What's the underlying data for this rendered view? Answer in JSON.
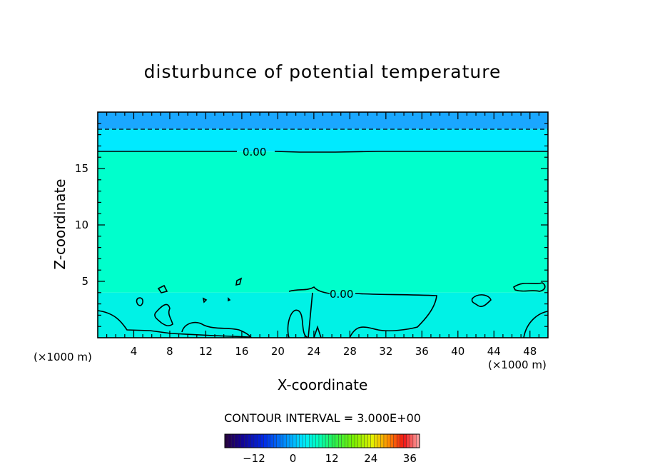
{
  "chart_data": {
    "type": "heatmap",
    "title": "disturbunce of potential temperature",
    "xlabel": "X-coordinate",
    "ylabel": "Z-coordinate",
    "x_unit_label": "(×1000 m)",
    "xlim": [
      0,
      50
    ],
    "ylim": [
      0,
      20
    ],
    "x_ticks": [
      4,
      8,
      12,
      16,
      20,
      24,
      28,
      32,
      36,
      40,
      44,
      48
    ],
    "y_ticks": [
      5,
      10,
      15
    ],
    "contour_interval_text": "CONTOUR INTERVAL = 3.000E+00",
    "contour_labels": [
      "0.00",
      "0.00"
    ],
    "colorbar": {
      "ticks": [
        -12,
        0,
        12,
        24,
        36
      ],
      "range": [
        -21,
        39
      ]
    },
    "field_bands": [
      {
        "z_from": 18.5,
        "z_to": 20,
        "color": "#1aa7ff",
        "value_range": "-6 to -3"
      },
      {
        "z_from": 16.5,
        "z_to": 18.5,
        "color": "#00eaff",
        "value_range": "-3 to 0"
      },
      {
        "z_from": 4,
        "z_to": 16.5,
        "color": "#00ffcc",
        "value_range": "0 to 3"
      },
      {
        "z_from": 0,
        "z_to": 4,
        "color": "#00f2e6",
        "value_range": "-3 to 0"
      }
    ],
    "contour_levels": {
      "solid": 0,
      "dashed": -3
    },
    "grid": false
  }
}
